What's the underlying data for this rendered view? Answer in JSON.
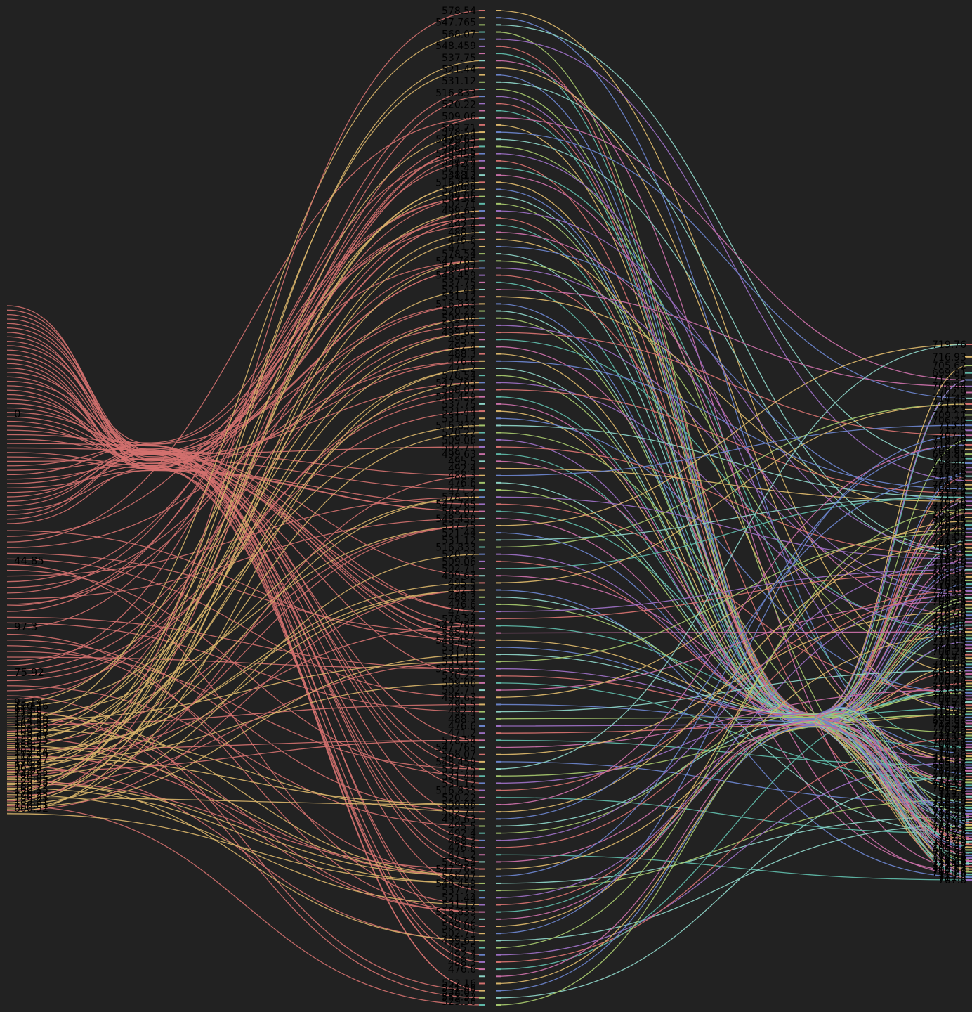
{
  "chart_data": {
    "type": "sankey",
    "background": "#222222",
    "label_color": "#000000",
    "left_column": {
      "groups": [
        {
          "label": "0",
          "color": "#d4716f",
          "count": 50
        },
        {
          "label": "44.85",
          "color": "#d4716f",
          "count": 14
        },
        {
          "label": "97.3",
          "color": "#d4716f",
          "count": 10
        },
        {
          "label": "75.92",
          "color": "#d4716f",
          "count": 8
        }
      ],
      "cluster_labels": [
        "93.14",
        "130.16",
        "91.58",
        "173.5",
        "122.86",
        "144.46",
        "162.86",
        "155.33",
        "109.38",
        "125.61",
        "128.55",
        "136.1",
        "85.64",
        "102.74",
        "117.59",
        "150.27",
        "170.4",
        "96.44",
        "99.92",
        "148.52",
        "180.65",
        "125.33",
        "188.72",
        "160.15",
        "176.2",
        "190.23",
        "185.71",
        "150.81",
        "600.52"
      ],
      "cluster_color": "#d9b56a",
      "cluster_count": 60
    },
    "middle_column": {
      "top_labels": [
        "578.54",
        "547.765",
        "568.07",
        "548.459",
        "537.75",
        "521.44",
        "531.12",
        "516.833",
        "520.22",
        "509.06",
        "502.71",
        "499.63",
        "495.5",
        "492.4",
        "488.3",
        "476.6",
        "471.2"
      ],
      "bottom_labels": [
        "552.16",
        "541.88",
        "538.07",
        "553.32",
        "529.56"
      ],
      "node_count": 140
    },
    "right_column": {
      "top_labels": [
        "719.76",
        "716.93",
        "705.62",
        "699.81",
        "712.35",
        "708.44",
        "702.9",
        "714.46",
        "721.05",
        "713.3",
        "709.11",
        "706.28",
        "715.4",
        "711.5",
        "707.6"
      ],
      "bottom_labels": [
        "714.82",
        "712.24",
        "715.03",
        "717.66"
      ],
      "node_count": 150
    },
    "flow_colors": [
      "#d4716f",
      "#d9b56a",
      "#a3c46b",
      "#5fb8a8",
      "#6a83c9",
      "#9b6fc2",
      "#c86fa6",
      "#8bd1c4"
    ]
  }
}
